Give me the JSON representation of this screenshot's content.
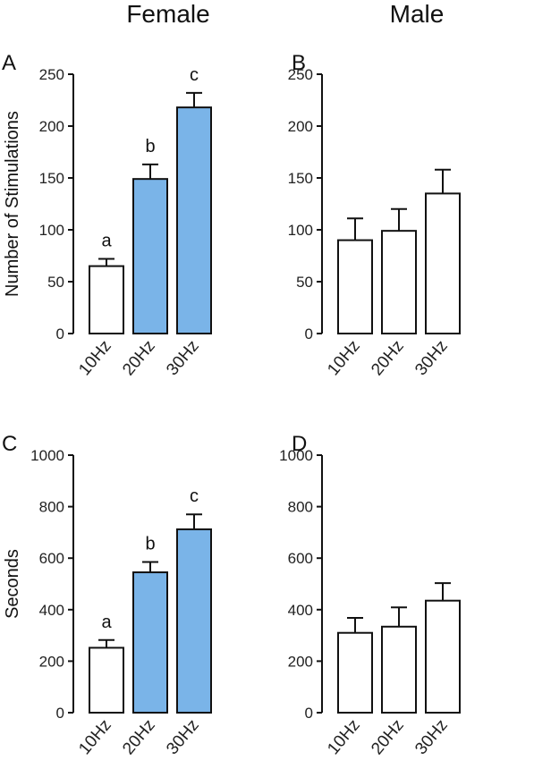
{
  "column_titles": {
    "female": "Female",
    "male": "Male"
  },
  "chart_data": [
    {
      "panel": "A",
      "type": "bar",
      "title": "",
      "xlabel": "",
      "ylabel": "Number of Stimulations",
      "categories": [
        "10Hz",
        "20Hz",
        "30Hz"
      ],
      "values": [
        65,
        149,
        218
      ],
      "errors": [
        7,
        14,
        14
      ],
      "fill_colors": [
        "#ffffff",
        "#7ab4e8",
        "#7ab4e8"
      ],
      "significance": [
        "a",
        "b",
        "c"
      ],
      "ylim": [
        0,
        250
      ],
      "yticks": [
        0,
        50,
        100,
        150,
        200,
        250
      ]
    },
    {
      "panel": "B",
      "type": "bar",
      "title": "",
      "xlabel": "",
      "ylabel": "",
      "categories": [
        "10Hz",
        "20Hz",
        "30Hz"
      ],
      "values": [
        90,
        99,
        135
      ],
      "errors": [
        21,
        21,
        23
      ],
      "fill_colors": [
        "#ffffff",
        "#ffffff",
        "#ffffff"
      ],
      "significance": [],
      "ylim": [
        0,
        250
      ],
      "yticks": [
        0,
        50,
        100,
        150,
        200,
        250
      ]
    },
    {
      "panel": "C",
      "type": "bar",
      "title": "",
      "xlabel": "",
      "ylabel": "Seconds",
      "categories": [
        "10Hz",
        "20Hz",
        "30Hz"
      ],
      "values": [
        252,
        545,
        712
      ],
      "errors": [
        30,
        40,
        58
      ],
      "fill_colors": [
        "#ffffff",
        "#7ab4e8",
        "#7ab4e8"
      ],
      "significance": [
        "a",
        "b",
        "c"
      ],
      "ylim": [
        0,
        1000
      ],
      "yticks": [
        0,
        200,
        400,
        600,
        800,
        1000
      ]
    },
    {
      "panel": "D",
      "type": "bar",
      "title": "",
      "xlabel": "",
      "ylabel": "",
      "categories": [
        "10Hz",
        "20Hz",
        "30Hz"
      ],
      "values": [
        310,
        334,
        435
      ],
      "errors": [
        58,
        75,
        68
      ],
      "fill_colors": [
        "#ffffff",
        "#ffffff",
        "#ffffff"
      ],
      "significance": [],
      "ylim": [
        0,
        1000
      ],
      "yticks": [
        0,
        200,
        400,
        600,
        800,
        1000
      ]
    }
  ]
}
